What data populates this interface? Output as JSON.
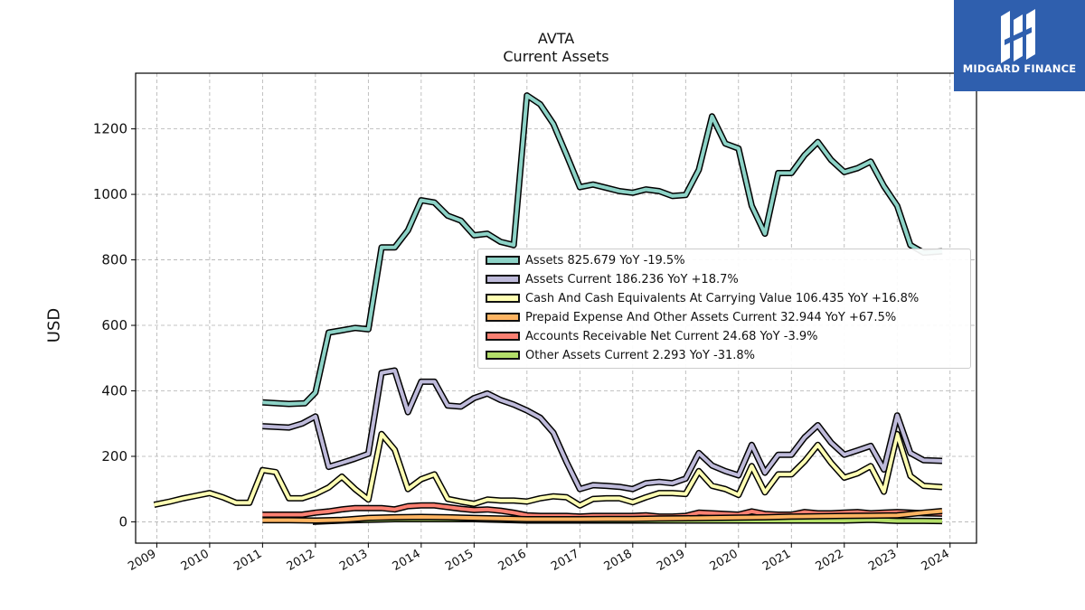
{
  "logo": {
    "text": "MIDGARD FINANCE"
  },
  "chart_data": {
    "type": "line",
    "title": "AVTA",
    "subtitle": "Current  Assets",
    "ylabel": "USD",
    "xlabel": "",
    "xlim": [
      2008.6,
      2024.5
    ],
    "ylim": [
      -65,
      1370
    ],
    "grid": true,
    "legend_position": "center-right",
    "xticks": [
      "2009",
      "2010",
      "2011",
      "2012",
      "2013",
      "2014",
      "2015",
      "2016",
      "2017",
      "2018",
      "2019",
      "2020",
      "2021",
      "2022",
      "2023",
      "2024"
    ],
    "yticks": [
      0,
      200,
      400,
      600,
      800,
      1000,
      1200
    ],
    "series": [
      {
        "name": "Assets",
        "legend": "Assets  825.679 YoY -19.5%",
        "color": "#8dd3c7",
        "points": [
          [
            2011.0,
            365
          ],
          [
            2011.5,
            360
          ],
          [
            2011.8,
            362
          ],
          [
            2012.0,
            395
          ],
          [
            2012.25,
            578
          ],
          [
            2012.5,
            585
          ],
          [
            2012.75,
            592
          ],
          [
            2013.0,
            588
          ],
          [
            2013.25,
            838
          ],
          [
            2013.5,
            838
          ],
          [
            2013.75,
            890
          ],
          [
            2014.0,
            982
          ],
          [
            2014.25,
            975
          ],
          [
            2014.5,
            935
          ],
          [
            2014.75,
            920
          ],
          [
            2015.0,
            875
          ],
          [
            2015.25,
            880
          ],
          [
            2015.5,
            855
          ],
          [
            2015.75,
            845
          ],
          [
            2016.0,
            1302
          ],
          [
            2016.25,
            1275
          ],
          [
            2016.5,
            1215
          ],
          [
            2016.75,
            1120
          ],
          [
            2017.0,
            1022
          ],
          [
            2017.25,
            1030
          ],
          [
            2017.5,
            1020
          ],
          [
            2017.75,
            1010
          ],
          [
            2018.0,
            1005
          ],
          [
            2018.25,
            1015
          ],
          [
            2018.5,
            1010
          ],
          [
            2018.75,
            995
          ],
          [
            2019.0,
            998
          ],
          [
            2019.25,
            1075
          ],
          [
            2019.5,
            1238
          ],
          [
            2019.75,
            1155
          ],
          [
            2020.0,
            1140
          ],
          [
            2020.25,
            965
          ],
          [
            2020.5,
            880
          ],
          [
            2020.75,
            1065
          ],
          [
            2021.0,
            1065
          ],
          [
            2021.25,
            1120
          ],
          [
            2021.5,
            1160
          ],
          [
            2021.75,
            1105
          ],
          [
            2022.0,
            1068
          ],
          [
            2022.25,
            1080
          ],
          [
            2022.5,
            1100
          ],
          [
            2022.75,
            1025
          ],
          [
            2023.0,
            965
          ],
          [
            2023.25,
            845
          ],
          [
            2023.5,
            822
          ],
          [
            2023.85,
            826
          ]
        ]
      },
      {
        "name": "Assets Current",
        "legend": "Assets Current  186.236 YoY +18.7%",
        "color": "#bebada",
        "points": [
          [
            2011.0,
            292
          ],
          [
            2011.5,
            288
          ],
          [
            2011.75,
            300
          ],
          [
            2012.0,
            322
          ],
          [
            2012.25,
            168
          ],
          [
            2012.5,
            180
          ],
          [
            2012.75,
            193
          ],
          [
            2013.0,
            208
          ],
          [
            2013.25,
            455
          ],
          [
            2013.5,
            462
          ],
          [
            2013.75,
            335
          ],
          [
            2014.0,
            428
          ],
          [
            2014.25,
            428
          ],
          [
            2014.5,
            355
          ],
          [
            2014.75,
            352
          ],
          [
            2015.0,
            378
          ],
          [
            2015.25,
            392
          ],
          [
            2015.5,
            372
          ],
          [
            2015.75,
            358
          ],
          [
            2016.0,
            340
          ],
          [
            2016.25,
            318
          ],
          [
            2016.5,
            272
          ],
          [
            2016.75,
            182
          ],
          [
            2017.0,
            100
          ],
          [
            2017.25,
            112
          ],
          [
            2017.5,
            110
          ],
          [
            2017.75,
            107
          ],
          [
            2018.0,
            100
          ],
          [
            2018.25,
            118
          ],
          [
            2018.5,
            122
          ],
          [
            2018.75,
            118
          ],
          [
            2019.0,
            132
          ],
          [
            2019.25,
            210
          ],
          [
            2019.5,
            172
          ],
          [
            2019.75,
            155
          ],
          [
            2020.0,
            142
          ],
          [
            2020.25,
            235
          ],
          [
            2020.5,
            150
          ],
          [
            2020.75,
            205
          ],
          [
            2021.0,
            205
          ],
          [
            2021.25,
            258
          ],
          [
            2021.5,
            295
          ],
          [
            2021.75,
            242
          ],
          [
            2022.0,
            205
          ],
          [
            2022.25,
            218
          ],
          [
            2022.5,
            232
          ],
          [
            2022.75,
            160
          ],
          [
            2023.0,
            325
          ],
          [
            2023.25,
            210
          ],
          [
            2023.5,
            188
          ],
          [
            2023.85,
            186
          ]
        ]
      },
      {
        "name": "Cash And Cash Equivalents At Carrying Value",
        "legend": "Cash And Cash Equivalents At Carrying Value  106.435 YoY +16.8%",
        "color": "#ffffb3",
        "points": [
          [
            2008.95,
            52
          ],
          [
            2009.25,
            62
          ],
          [
            2009.5,
            72
          ],
          [
            2009.75,
            80
          ],
          [
            2010.0,
            88
          ],
          [
            2010.25,
            75
          ],
          [
            2010.5,
            58
          ],
          [
            2010.75,
            58
          ],
          [
            2011.0,
            158
          ],
          [
            2011.25,
            152
          ],
          [
            2011.5,
            72
          ],
          [
            2011.75,
            72
          ],
          [
            2012.0,
            85
          ],
          [
            2012.25,
            105
          ],
          [
            2012.5,
            138
          ],
          [
            2012.75,
            100
          ],
          [
            2013.0,
            68
          ],
          [
            2013.25,
            268
          ],
          [
            2013.5,
            220
          ],
          [
            2013.75,
            100
          ],
          [
            2014.0,
            130
          ],
          [
            2014.25,
            145
          ],
          [
            2014.5,
            70
          ],
          [
            2014.75,
            62
          ],
          [
            2015.0,
            55
          ],
          [
            2015.25,
            68
          ],
          [
            2015.5,
            65
          ],
          [
            2015.75,
            65
          ],
          [
            2016.0,
            62
          ],
          [
            2016.25,
            72
          ],
          [
            2016.5,
            78
          ],
          [
            2016.75,
            75
          ],
          [
            2017.0,
            50
          ],
          [
            2017.25,
            70
          ],
          [
            2017.5,
            72
          ],
          [
            2017.75,
            72
          ],
          [
            2018.0,
            60
          ],
          [
            2018.25,
            75
          ],
          [
            2018.5,
            88
          ],
          [
            2018.75,
            88
          ],
          [
            2019.0,
            85
          ],
          [
            2019.25,
            155
          ],
          [
            2019.5,
            110
          ],
          [
            2019.75,
            100
          ],
          [
            2020.0,
            82
          ],
          [
            2020.25,
            170
          ],
          [
            2020.5,
            90
          ],
          [
            2020.75,
            145
          ],
          [
            2021.0,
            145
          ],
          [
            2021.25,
            185
          ],
          [
            2021.5,
            235
          ],
          [
            2021.75,
            180
          ],
          [
            2022.0,
            135
          ],
          [
            2022.25,
            148
          ],
          [
            2022.5,
            170
          ],
          [
            2022.75,
            92
          ],
          [
            2023.0,
            268
          ],
          [
            2023.25,
            140
          ],
          [
            2023.5,
            110
          ],
          [
            2023.85,
            106
          ]
        ]
      },
      {
        "name": "Prepaid Expense And Other Assets Current",
        "legend": "Prepaid Expense And Other Assets Current  32.944 YoY +67.5%",
        "color": "#fdb462",
        "points": [
          [
            2011.0,
            5
          ],
          [
            2011.5,
            5
          ],
          [
            2012.0,
            4
          ],
          [
            2012.5,
            6
          ],
          [
            2013.0,
            12
          ],
          [
            2013.5,
            14
          ],
          [
            2014.0,
            15
          ],
          [
            2014.5,
            14
          ],
          [
            2015.0,
            12
          ],
          [
            2015.5,
            10
          ],
          [
            2016.0,
            8
          ],
          [
            2016.5,
            8
          ],
          [
            2017.0,
            8
          ],
          [
            2017.5,
            9
          ],
          [
            2018.0,
            9
          ],
          [
            2018.5,
            10
          ],
          [
            2019.0,
            11
          ],
          [
            2019.5,
            12
          ],
          [
            2020.0,
            13
          ],
          [
            2020.5,
            14
          ],
          [
            2021.0,
            16
          ],
          [
            2021.5,
            17
          ],
          [
            2022.0,
            18
          ],
          [
            2022.5,
            19
          ],
          [
            2023.0,
            20
          ],
          [
            2023.5,
            28
          ],
          [
            2023.85,
            33
          ]
        ]
      },
      {
        "name": "Accounts Receivable Net Current",
        "legend": "Accounts Receivable Net Current  24.68 YoY -3.9%",
        "color": "#fb8072",
        "points": [
          [
            2011.0,
            22
          ],
          [
            2011.5,
            22
          ],
          [
            2011.75,
            22
          ],
          [
            2012.0,
            28
          ],
          [
            2012.25,
            32
          ],
          [
            2012.5,
            38
          ],
          [
            2012.75,
            42
          ],
          [
            2013.0,
            42
          ],
          [
            2013.25,
            42
          ],
          [
            2013.5,
            38
          ],
          [
            2013.75,
            48
          ],
          [
            2014.0,
            50
          ],
          [
            2014.25,
            50
          ],
          [
            2014.5,
            45
          ],
          [
            2014.75,
            40
          ],
          [
            2015.0,
            36
          ],
          [
            2015.25,
            38
          ],
          [
            2015.5,
            34
          ],
          [
            2015.75,
            28
          ],
          [
            2016.0,
            20
          ],
          [
            2016.25,
            18
          ],
          [
            2016.5,
            18
          ],
          [
            2016.75,
            18
          ],
          [
            2017.0,
            16
          ],
          [
            2017.25,
            18
          ],
          [
            2017.5,
            18
          ],
          [
            2017.75,
            18
          ],
          [
            2018.0,
            18
          ],
          [
            2018.25,
            20
          ],
          [
            2018.5,
            16
          ],
          [
            2018.75,
            16
          ],
          [
            2019.0,
            18
          ],
          [
            2019.25,
            28
          ],
          [
            2019.5,
            26
          ],
          [
            2019.75,
            24
          ],
          [
            2020.0,
            22
          ],
          [
            2020.25,
            32
          ],
          [
            2020.5,
            24
          ],
          [
            2020.75,
            22
          ],
          [
            2021.0,
            22
          ],
          [
            2021.25,
            30
          ],
          [
            2021.5,
            26
          ],
          [
            2021.75,
            26
          ],
          [
            2022.0,
            28
          ],
          [
            2022.25,
            30
          ],
          [
            2022.5,
            26
          ],
          [
            2022.75,
            28
          ],
          [
            2023.0,
            30
          ],
          [
            2023.25,
            28
          ],
          [
            2023.5,
            26
          ],
          [
            2023.85,
            25
          ]
        ]
      },
      {
        "name": "Other Assets Current",
        "legend": "Other Assets Current  2.293 YoY -31.8%",
        "color": "#b3de69",
        "points": [
          [
            2011.95,
            0
          ],
          [
            2012.5,
            4
          ],
          [
            2013.0,
            6
          ],
          [
            2013.5,
            8
          ],
          [
            2014.0,
            8
          ],
          [
            2014.5,
            8
          ],
          [
            2015.0,
            8
          ],
          [
            2015.5,
            6
          ],
          [
            2016.0,
            4
          ],
          [
            2016.5,
            4
          ],
          [
            2017.0,
            4
          ],
          [
            2017.5,
            4
          ],
          [
            2018.0,
            4
          ],
          [
            2018.5,
            4
          ],
          [
            2019.0,
            4
          ],
          [
            2019.5,
            4
          ],
          [
            2020.0,
            4
          ],
          [
            2020.5,
            4
          ],
          [
            2021.0,
            4
          ],
          [
            2021.5,
            4
          ],
          [
            2022.0,
            4
          ],
          [
            2022.5,
            6
          ],
          [
            2023.0,
            3
          ],
          [
            2023.5,
            3
          ],
          [
            2023.85,
            2.3
          ]
        ]
      }
    ]
  }
}
